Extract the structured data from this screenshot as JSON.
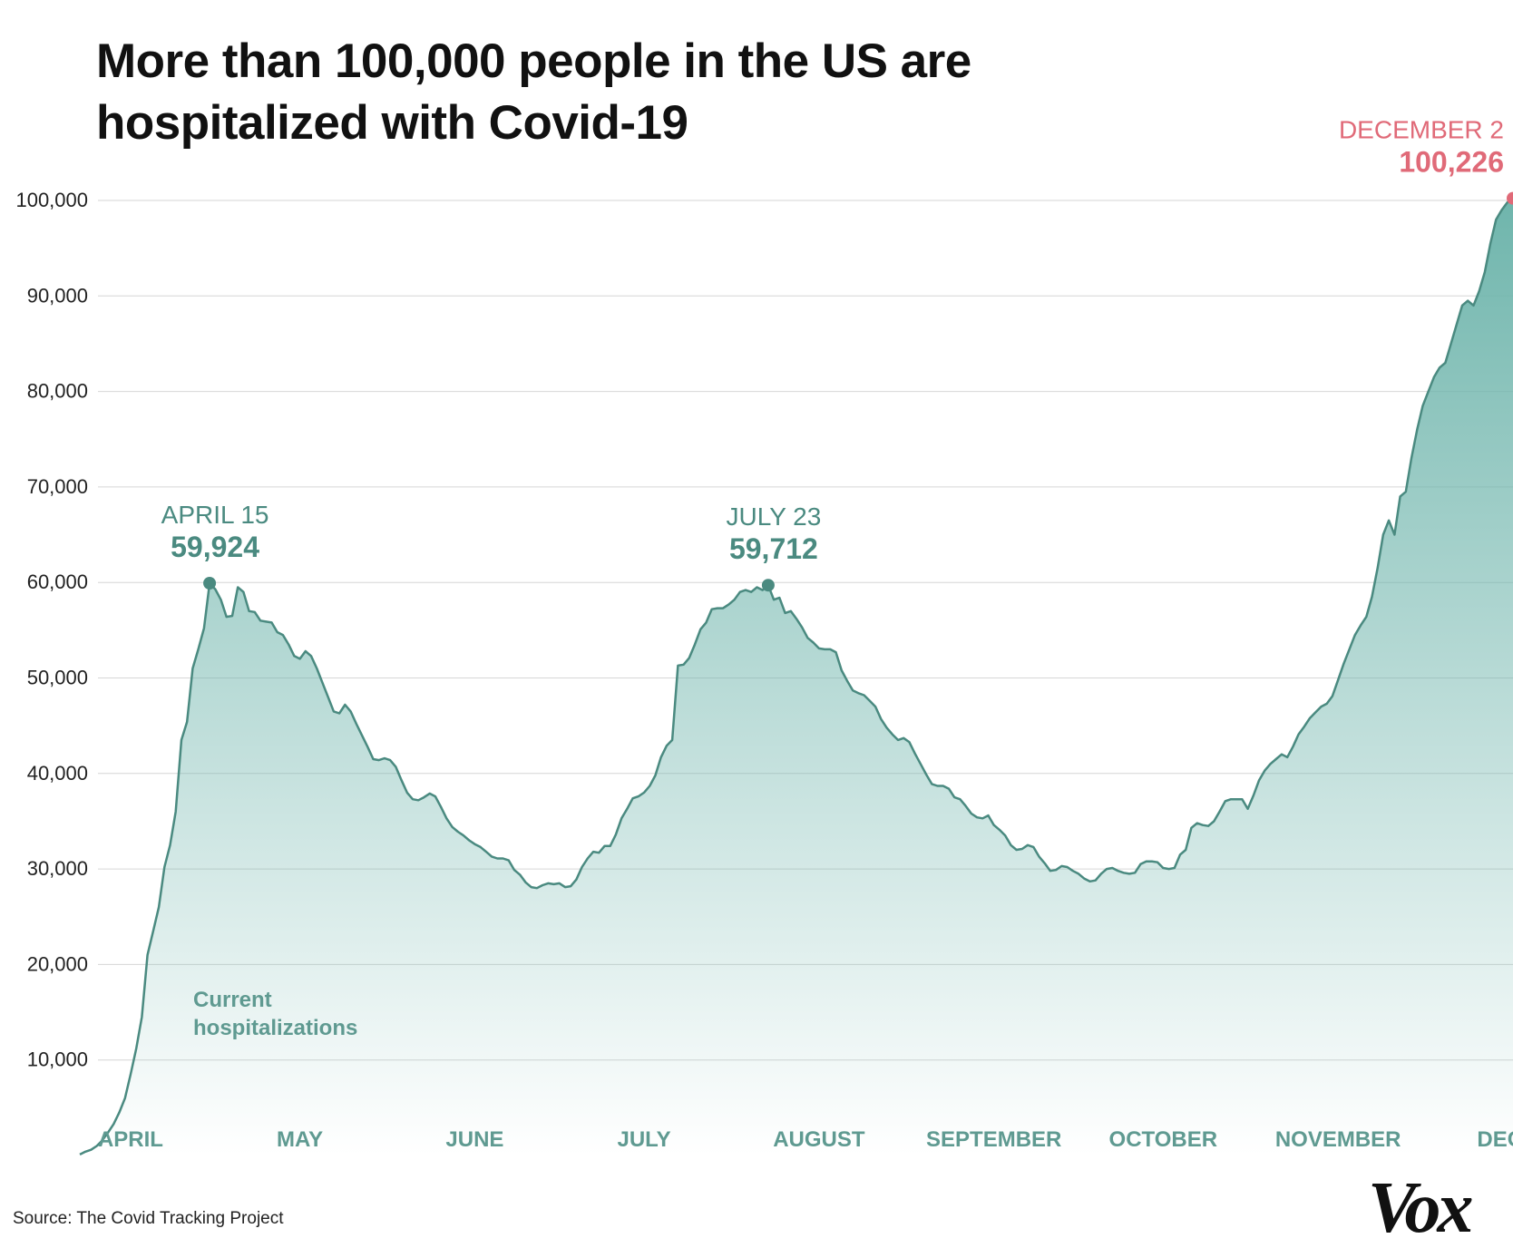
{
  "title_line1": "More than 100,000 people in the US are",
  "title_line2": "hospitalized with Covid-19",
  "source": "Source: The Covid Tracking Project",
  "logo": "Vox",
  "colors": {
    "line": "#4a8a80",
    "fill_top": "#6fb5ac",
    "peak": "#4a8a80",
    "latest": "#e06a78",
    "month": "#5f9a91",
    "grid": "#d6d6d6",
    "axis_text": "#222222"
  },
  "chart_data": {
    "type": "area",
    "title": "More than 100,000 people in the US are hospitalized with Covid-19",
    "series_label": [
      "Current",
      "hospitalizations"
    ],
    "ylim": [
      0,
      100000
    ],
    "yticks": [
      10000,
      20000,
      30000,
      40000,
      50000,
      60000,
      70000,
      80000,
      90000,
      100000
    ],
    "ytick_labels": [
      "10,000",
      "20,000",
      "30,000",
      "40,000",
      "50,000",
      "60,000",
      "70,000",
      "80,000",
      "90,000",
      "100,000"
    ],
    "month_labels": [
      {
        "label": "APRIL",
        "date": "2020-04-01"
      },
      {
        "label": "MAY",
        "date": "2020-05-01"
      },
      {
        "label": "JUNE",
        "date": "2020-06-01"
      },
      {
        "label": "JULY",
        "date": "2020-07-01"
      },
      {
        "label": "AUGUST",
        "date": "2020-08-01"
      },
      {
        "label": "SEPTEMBER",
        "date": "2020-09-01"
      },
      {
        "label": "OCTOBER",
        "date": "2020-10-01"
      },
      {
        "label": "NOVEMBER",
        "date": "2020-11-01"
      },
      {
        "label": "DECE",
        "date": "2020-12-01"
      }
    ],
    "annotations": [
      {
        "date": "2020-04-15",
        "label": "APRIL 15",
        "value_label": "59,924",
        "value": 59924,
        "style": "peak"
      },
      {
        "date": "2020-07-23",
        "label": "JULY 23",
        "value_label": "59,712",
        "value": 59712,
        "style": "peak"
      },
      {
        "date": "2020-12-02",
        "label": "DECEMBER 2",
        "value_label": "100,226",
        "value": 100226,
        "style": "latest"
      }
    ],
    "points": [
      [
        "2020-03-23",
        100
      ],
      [
        "2020-03-24",
        400
      ],
      [
        "2020-03-25",
        600
      ],
      [
        "2020-03-26",
        1000
      ],
      [
        "2020-03-27",
        1600
      ],
      [
        "2020-03-28",
        2400
      ],
      [
        "2020-03-29",
        3300
      ],
      [
        "2020-03-30",
        4500
      ],
      [
        "2020-03-31",
        6000
      ],
      [
        "2020-04-01",
        8500
      ],
      [
        "2020-04-02",
        11200
      ],
      [
        "2020-04-03",
        14500
      ],
      [
        "2020-04-04",
        21000
      ],
      [
        "2020-04-05",
        23500
      ],
      [
        "2020-04-06",
        26000
      ],
      [
        "2020-04-07",
        30200
      ],
      [
        "2020-04-08",
        32500
      ],
      [
        "2020-04-09",
        36000
      ],
      [
        "2020-04-10",
        43500
      ],
      [
        "2020-04-11",
        45400
      ],
      [
        "2020-04-12",
        51000
      ],
      [
        "2020-04-13",
        53000
      ],
      [
        "2020-04-14",
        55200
      ],
      [
        "2020-04-15",
        59924
      ],
      [
        "2020-04-16",
        59300
      ],
      [
        "2020-04-17",
        58200
      ],
      [
        "2020-04-18",
        56400
      ],
      [
        "2020-04-19",
        56500
      ],
      [
        "2020-04-20",
        59500
      ],
      [
        "2020-04-21",
        59000
      ],
      [
        "2020-04-22",
        57000
      ],
      [
        "2020-04-23",
        56900
      ],
      [
        "2020-04-24",
        56000
      ],
      [
        "2020-04-25",
        55900
      ],
      [
        "2020-04-26",
        55800
      ],
      [
        "2020-04-27",
        54800
      ],
      [
        "2020-04-28",
        54500
      ],
      [
        "2020-04-29",
        53500
      ],
      [
        "2020-04-30",
        52300
      ],
      [
        "2020-05-01",
        52000
      ],
      [
        "2020-05-02",
        52800
      ],
      [
        "2020-05-03",
        52300
      ],
      [
        "2020-05-04",
        51000
      ],
      [
        "2020-05-05",
        49500
      ],
      [
        "2020-05-06",
        48000
      ],
      [
        "2020-05-07",
        46500
      ],
      [
        "2020-05-08",
        46300
      ],
      [
        "2020-05-09",
        47200
      ],
      [
        "2020-05-10",
        46500
      ],
      [
        "2020-05-11",
        45200
      ],
      [
        "2020-05-12",
        44000
      ],
      [
        "2020-05-13",
        42800
      ],
      [
        "2020-05-14",
        41500
      ],
      [
        "2020-05-15",
        41400
      ],
      [
        "2020-05-16",
        41600
      ],
      [
        "2020-05-17",
        41400
      ],
      [
        "2020-05-18",
        40700
      ],
      [
        "2020-05-19",
        39300
      ],
      [
        "2020-05-20",
        38000
      ],
      [
        "2020-05-21",
        37300
      ],
      [
        "2020-05-22",
        37200
      ],
      [
        "2020-05-23",
        37500
      ],
      [
        "2020-05-24",
        37900
      ],
      [
        "2020-05-25",
        37600
      ],
      [
        "2020-05-26",
        36500
      ],
      [
        "2020-05-27",
        35300
      ],
      [
        "2020-05-28",
        34400
      ],
      [
        "2020-05-29",
        33900
      ],
      [
        "2020-05-30",
        33500
      ],
      [
        "2020-05-31",
        33000
      ],
      [
        "2020-06-01",
        32600
      ],
      [
        "2020-06-02",
        32300
      ],
      [
        "2020-06-03",
        31800
      ],
      [
        "2020-06-04",
        31300
      ],
      [
        "2020-06-05",
        31100
      ],
      [
        "2020-06-06",
        31100
      ],
      [
        "2020-06-07",
        30900
      ],
      [
        "2020-06-08",
        29900
      ],
      [
        "2020-06-09",
        29400
      ],
      [
        "2020-06-10",
        28600
      ],
      [
        "2020-06-11",
        28100
      ],
      [
        "2020-06-12",
        28000
      ],
      [
        "2020-06-13",
        28300
      ],
      [
        "2020-06-14",
        28500
      ],
      [
        "2020-06-15",
        28400
      ],
      [
        "2020-06-16",
        28500
      ],
      [
        "2020-06-17",
        28100
      ],
      [
        "2020-06-18",
        28200
      ],
      [
        "2020-06-19",
        28900
      ],
      [
        "2020-06-20",
        30200
      ],
      [
        "2020-06-21",
        31100
      ],
      [
        "2020-06-22",
        31800
      ],
      [
        "2020-06-23",
        31700
      ],
      [
        "2020-06-24",
        32400
      ],
      [
        "2020-06-25",
        32400
      ],
      [
        "2020-06-26",
        33600
      ],
      [
        "2020-06-27",
        35300
      ],
      [
        "2020-06-28",
        36300
      ],
      [
        "2020-06-29",
        37400
      ],
      [
        "2020-06-30",
        37600
      ],
      [
        "2020-07-01",
        38000
      ],
      [
        "2020-07-02",
        38700
      ],
      [
        "2020-07-03",
        39800
      ],
      [
        "2020-07-04",
        41700
      ],
      [
        "2020-07-05",
        42900
      ],
      [
        "2020-07-06",
        43500
      ],
      [
        "2020-07-07",
        51300
      ],
      [
        "2020-07-08",
        51400
      ],
      [
        "2020-07-09",
        52100
      ],
      [
        "2020-07-10",
        53500
      ],
      [
        "2020-07-11",
        55100
      ],
      [
        "2020-07-12",
        55800
      ],
      [
        "2020-07-13",
        57200
      ],
      [
        "2020-07-14",
        57300
      ],
      [
        "2020-07-15",
        57300
      ],
      [
        "2020-07-16",
        57700
      ],
      [
        "2020-07-17",
        58200
      ],
      [
        "2020-07-18",
        59000
      ],
      [
        "2020-07-19",
        59200
      ],
      [
        "2020-07-20",
        59000
      ],
      [
        "2020-07-21",
        59500
      ],
      [
        "2020-07-22",
        59200
      ],
      [
        "2020-07-23",
        59712
      ],
      [
        "2020-07-24",
        58200
      ],
      [
        "2020-07-25",
        58400
      ],
      [
        "2020-07-26",
        56800
      ],
      [
        "2020-07-27",
        57000
      ],
      [
        "2020-07-28",
        56200
      ],
      [
        "2020-07-29",
        55300
      ],
      [
        "2020-07-30",
        54200
      ],
      [
        "2020-07-31",
        53700
      ],
      [
        "2020-08-01",
        53100
      ],
      [
        "2020-08-02",
        53000
      ],
      [
        "2020-08-03",
        53000
      ],
      [
        "2020-08-04",
        52700
      ],
      [
        "2020-08-05",
        50800
      ],
      [
        "2020-08-06",
        49700
      ],
      [
        "2020-08-07",
        48700
      ],
      [
        "2020-08-08",
        48400
      ],
      [
        "2020-08-09",
        48200
      ],
      [
        "2020-08-10",
        47600
      ],
      [
        "2020-08-11",
        47000
      ],
      [
        "2020-08-12",
        45700
      ],
      [
        "2020-08-13",
        44800
      ],
      [
        "2020-08-14",
        44100
      ],
      [
        "2020-08-15",
        43500
      ],
      [
        "2020-08-16",
        43700
      ],
      [
        "2020-08-17",
        43300
      ],
      [
        "2020-08-18",
        42100
      ],
      [
        "2020-08-19",
        41000
      ],
      [
        "2020-08-20",
        39900
      ],
      [
        "2020-08-21",
        38900
      ],
      [
        "2020-08-22",
        38700
      ],
      [
        "2020-08-23",
        38700
      ],
      [
        "2020-08-24",
        38400
      ],
      [
        "2020-08-25",
        37500
      ],
      [
        "2020-08-26",
        37300
      ],
      [
        "2020-08-27",
        36600
      ],
      [
        "2020-08-28",
        35800
      ],
      [
        "2020-08-29",
        35400
      ],
      [
        "2020-08-30",
        35300
      ],
      [
        "2020-08-31",
        35600
      ],
      [
        "2020-09-01",
        34600
      ],
      [
        "2020-09-02",
        34100
      ],
      [
        "2020-09-03",
        33500
      ],
      [
        "2020-09-04",
        32500
      ],
      [
        "2020-09-05",
        32000
      ],
      [
        "2020-09-06",
        32100
      ],
      [
        "2020-09-07",
        32500
      ],
      [
        "2020-09-08",
        32300
      ],
      [
        "2020-09-09",
        31300
      ],
      [
        "2020-09-10",
        30600
      ],
      [
        "2020-09-11",
        29800
      ],
      [
        "2020-09-12",
        29900
      ],
      [
        "2020-09-13",
        30300
      ],
      [
        "2020-09-14",
        30200
      ],
      [
        "2020-09-15",
        29800
      ],
      [
        "2020-09-16",
        29500
      ],
      [
        "2020-09-17",
        29000
      ],
      [
        "2020-09-18",
        28700
      ],
      [
        "2020-09-19",
        28800
      ],
      [
        "2020-09-20",
        29500
      ],
      [
        "2020-09-21",
        30000
      ],
      [
        "2020-09-22",
        30100
      ],
      [
        "2020-09-23",
        29800
      ],
      [
        "2020-09-24",
        29600
      ],
      [
        "2020-09-25",
        29500
      ],
      [
        "2020-09-26",
        29600
      ],
      [
        "2020-09-27",
        30500
      ],
      [
        "2020-09-28",
        30800
      ],
      [
        "2020-09-29",
        30800
      ],
      [
        "2020-09-30",
        30700
      ],
      [
        "2020-10-01",
        30100
      ],
      [
        "2020-10-02",
        30000
      ],
      [
        "2020-10-03",
        30100
      ],
      [
        "2020-10-04",
        31500
      ],
      [
        "2020-10-05",
        32000
      ],
      [
        "2020-10-06",
        34300
      ],
      [
        "2020-10-07",
        34800
      ],
      [
        "2020-10-08",
        34600
      ],
      [
        "2020-10-09",
        34500
      ],
      [
        "2020-10-10",
        35000
      ],
      [
        "2020-10-11",
        36000
      ],
      [
        "2020-10-12",
        37100
      ],
      [
        "2020-10-13",
        37300
      ],
      [
        "2020-10-14",
        37300
      ],
      [
        "2020-10-15",
        37300
      ],
      [
        "2020-10-16",
        36300
      ],
      [
        "2020-10-17",
        37700
      ],
      [
        "2020-10-18",
        39300
      ],
      [
        "2020-10-19",
        40300
      ],
      [
        "2020-10-20",
        41000
      ],
      [
        "2020-10-21",
        41500
      ],
      [
        "2020-10-22",
        42000
      ],
      [
        "2020-10-23",
        41700
      ],
      [
        "2020-10-24",
        42800
      ],
      [
        "2020-10-25",
        44100
      ],
      [
        "2020-10-26",
        44900
      ],
      [
        "2020-10-27",
        45800
      ],
      [
        "2020-10-28",
        46400
      ],
      [
        "2020-10-29",
        47000
      ],
      [
        "2020-10-30",
        47300
      ],
      [
        "2020-10-31",
        48100
      ],
      [
        "2020-11-01",
        49800
      ],
      [
        "2020-11-02",
        51500
      ],
      [
        "2020-11-03",
        53000
      ],
      [
        "2020-11-04",
        54500
      ],
      [
        "2020-11-05",
        55500
      ],
      [
        "2020-11-06",
        56400
      ],
      [
        "2020-11-07",
        58500
      ],
      [
        "2020-11-08",
        61500
      ],
      [
        "2020-11-09",
        65000
      ],
      [
        "2020-11-10",
        66500
      ],
      [
        "2020-11-11",
        65000
      ],
      [
        "2020-11-12",
        69000
      ],
      [
        "2020-11-13",
        69500
      ],
      [
        "2020-11-14",
        73000
      ],
      [
        "2020-11-15",
        76000
      ],
      [
        "2020-11-16",
        78500
      ],
      [
        "2020-11-17",
        80000
      ],
      [
        "2020-11-18",
        81500
      ],
      [
        "2020-11-19",
        82500
      ],
      [
        "2020-11-20",
        83000
      ],
      [
        "2020-11-21",
        85000
      ],
      [
        "2020-11-22",
        87000
      ],
      [
        "2020-11-23",
        89000
      ],
      [
        "2020-11-24",
        89500
      ],
      [
        "2020-11-25",
        89000
      ],
      [
        "2020-11-26",
        90500
      ],
      [
        "2020-11-27",
        92500
      ],
      [
        "2020-11-28",
        95500
      ],
      [
        "2020-11-29",
        98000
      ],
      [
        "2020-11-30",
        99000
      ],
      [
        "2020-12-01",
        99800
      ],
      [
        "2020-12-02",
        100226
      ]
    ]
  }
}
